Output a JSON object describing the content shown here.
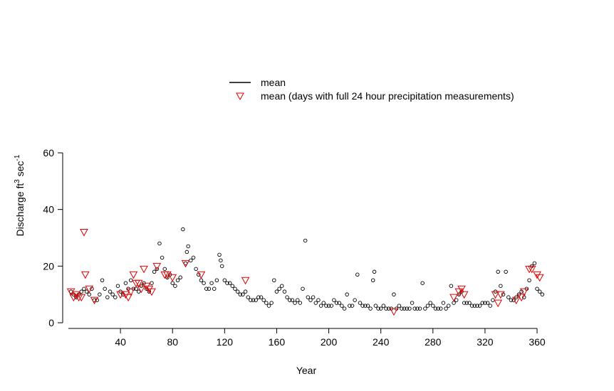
{
  "chart_data": {
    "type": "scatter",
    "title": "",
    "xlabel": "Year",
    "ylabel_main": "Discharge ft",
    "ylabel_sup1": "3",
    "ylabel_mid": " sec",
    "ylabel_sup2": "-1",
    "xlim": [
      0,
      366
    ],
    "ylim": [
      0,
      60
    ],
    "x_ticks": [
      40,
      80,
      120,
      160,
      200,
      240,
      280,
      320,
      360
    ],
    "y_ticks": [
      0,
      20,
      40,
      60
    ],
    "grid": false,
    "legend_position": "top-center",
    "legend": [
      {
        "label": "mean",
        "marker": "line",
        "color": "#000000"
      },
      {
        "label": "mean (days with full 24 hour precipitation measurements)",
        "marker": "down-triangle",
        "color": "#e00000"
      }
    ],
    "series": [
      {
        "name": "mean",
        "marker": "circle",
        "color": "#000000",
        "points": [
          [
            2,
            11
          ],
          [
            4,
            10
          ],
          [
            6,
            9
          ],
          [
            8,
            10
          ],
          [
            10,
            11
          ],
          [
            12,
            12
          ],
          [
            14,
            11
          ],
          [
            16,
            10
          ],
          [
            18,
            12
          ],
          [
            20,
            8
          ],
          [
            22,
            8
          ],
          [
            24,
            10
          ],
          [
            26,
            15
          ],
          [
            28,
            12
          ],
          [
            30,
            9
          ],
          [
            32,
            11
          ],
          [
            34,
            10
          ],
          [
            36,
            9
          ],
          [
            38,
            13
          ],
          [
            40,
            11
          ],
          [
            42,
            10
          ],
          [
            44,
            14
          ],
          [
            46,
            12
          ],
          [
            48,
            15
          ],
          [
            50,
            12
          ],
          [
            52,
            12
          ],
          [
            54,
            11
          ],
          [
            56,
            13
          ],
          [
            58,
            14
          ],
          [
            60,
            12
          ],
          [
            62,
            11
          ],
          [
            64,
            14
          ],
          [
            66,
            18
          ],
          [
            68,
            19
          ],
          [
            70,
            28
          ],
          [
            72,
            23
          ],
          [
            74,
            19
          ],
          [
            76,
            16
          ],
          [
            78,
            17
          ],
          [
            80,
            14
          ],
          [
            82,
            13
          ],
          [
            84,
            15
          ],
          [
            86,
            16
          ],
          [
            88,
            33
          ],
          [
            90,
            21
          ],
          [
            91,
            25
          ],
          [
            92,
            27
          ],
          [
            94,
            22
          ],
          [
            96,
            23
          ],
          [
            98,
            19
          ],
          [
            100,
            17
          ],
          [
            102,
            15
          ],
          [
            104,
            14
          ],
          [
            106,
            12
          ],
          [
            108,
            12
          ],
          [
            110,
            14
          ],
          [
            112,
            12
          ],
          [
            114,
            15
          ],
          [
            116,
            24
          ],
          [
            117,
            22
          ],
          [
            118,
            20
          ],
          [
            120,
            15
          ],
          [
            122,
            14
          ],
          [
            124,
            14
          ],
          [
            126,
            13
          ],
          [
            128,
            12
          ],
          [
            130,
            11
          ],
          [
            132,
            10
          ],
          [
            134,
            10
          ],
          [
            136,
            11
          ],
          [
            138,
            9
          ],
          [
            140,
            8
          ],
          [
            142,
            8
          ],
          [
            144,
            8
          ],
          [
            146,
            9
          ],
          [
            148,
            9
          ],
          [
            150,
            8
          ],
          [
            152,
            7
          ],
          [
            154,
            6
          ],
          [
            156,
            7
          ],
          [
            158,
            15
          ],
          [
            160,
            11
          ],
          [
            162,
            12
          ],
          [
            164,
            13
          ],
          [
            166,
            11
          ],
          [
            168,
            9
          ],
          [
            170,
            8
          ],
          [
            172,
            8
          ],
          [
            174,
            7
          ],
          [
            176,
            8
          ],
          [
            178,
            7
          ],
          [
            180,
            12
          ],
          [
            182,
            29
          ],
          [
            184,
            9
          ],
          [
            186,
            8
          ],
          [
            188,
            9
          ],
          [
            190,
            7
          ],
          [
            192,
            8
          ],
          [
            194,
            6
          ],
          [
            196,
            7
          ],
          [
            198,
            6
          ],
          [
            200,
            6
          ],
          [
            202,
            6
          ],
          [
            204,
            8
          ],
          [
            206,
            7
          ],
          [
            208,
            7
          ],
          [
            210,
            6
          ],
          [
            212,
            5
          ],
          [
            214,
            10
          ],
          [
            216,
            6
          ],
          [
            218,
            6
          ],
          [
            220,
            8
          ],
          [
            222,
            17
          ],
          [
            224,
            7
          ],
          [
            226,
            6
          ],
          [
            228,
            6
          ],
          [
            230,
            6
          ],
          [
            232,
            5
          ],
          [
            234,
            15
          ],
          [
            235,
            18
          ],
          [
            236,
            6
          ],
          [
            238,
            5
          ],
          [
            240,
            5
          ],
          [
            242,
            6
          ],
          [
            244,
            5
          ],
          [
            246,
            5
          ],
          [
            248,
            5
          ],
          [
            250,
            10
          ],
          [
            252,
            5
          ],
          [
            254,
            6
          ],
          [
            256,
            5
          ],
          [
            258,
            5
          ],
          [
            260,
            5
          ],
          [
            262,
            5
          ],
          [
            264,
            7
          ],
          [
            266,
            5
          ],
          [
            268,
            5
          ],
          [
            270,
            5
          ],
          [
            272,
            14
          ],
          [
            274,
            5
          ],
          [
            276,
            6
          ],
          [
            278,
            7
          ],
          [
            280,
            6
          ],
          [
            282,
            5
          ],
          [
            284,
            5
          ],
          [
            286,
            5
          ],
          [
            288,
            7
          ],
          [
            290,
            5
          ],
          [
            292,
            6
          ],
          [
            294,
            13
          ],
          [
            296,
            7
          ],
          [
            298,
            8
          ],
          [
            300,
            10
          ],
          [
            302,
            11
          ],
          [
            304,
            7
          ],
          [
            306,
            7
          ],
          [
            308,
            7
          ],
          [
            310,
            6
          ],
          [
            312,
            6
          ],
          [
            314,
            6
          ],
          [
            316,
            6
          ],
          [
            318,
            7
          ],
          [
            320,
            7
          ],
          [
            322,
            7
          ],
          [
            324,
            6
          ],
          [
            326,
            8
          ],
          [
            328,
            11
          ],
          [
            330,
            18
          ],
          [
            332,
            13
          ],
          [
            334,
            10
          ],
          [
            336,
            18
          ],
          [
            338,
            9
          ],
          [
            340,
            8
          ],
          [
            342,
            8
          ],
          [
            344,
            9
          ],
          [
            346,
            10
          ],
          [
            348,
            11
          ],
          [
            350,
            9
          ],
          [
            352,
            12
          ],
          [
            354,
            15
          ],
          [
            356,
            20
          ],
          [
            358,
            21
          ],
          [
            360,
            12
          ],
          [
            362,
            11
          ],
          [
            364,
            10
          ]
        ]
      },
      {
        "name": "mean (days with full 24 hour precipitation measurements)",
        "marker": "down-triangle",
        "color": "#e00000",
        "points": [
          [
            2,
            11
          ],
          [
            4,
            9
          ],
          [
            6,
            10
          ],
          [
            8,
            9
          ],
          [
            10,
            9
          ],
          [
            12,
            32
          ],
          [
            13,
            17
          ],
          [
            16,
            12
          ],
          [
            20,
            8
          ],
          [
            40,
            10
          ],
          [
            44,
            10
          ],
          [
            46,
            9
          ],
          [
            48,
            11
          ],
          [
            50,
            17
          ],
          [
            52,
            14
          ],
          [
            54,
            14
          ],
          [
            56,
            12
          ],
          [
            58,
            19
          ],
          [
            60,
            13
          ],
          [
            62,
            12
          ],
          [
            64,
            11
          ],
          [
            68,
            20
          ],
          [
            74,
            17
          ],
          [
            76,
            17
          ],
          [
            80,
            16
          ],
          [
            90,
            21
          ],
          [
            102,
            17
          ],
          [
            136,
            15
          ],
          [
            250,
            4
          ],
          [
            296,
            9
          ],
          [
            300,
            11
          ],
          [
            302,
            12
          ],
          [
            304,
            10
          ],
          [
            328,
            10
          ],
          [
            330,
            7
          ],
          [
            332,
            10
          ],
          [
            344,
            8
          ],
          [
            348,
            9
          ],
          [
            350,
            11
          ],
          [
            354,
            19
          ],
          [
            356,
            19
          ],
          [
            360,
            17
          ],
          [
            362,
            16
          ]
        ]
      }
    ]
  }
}
